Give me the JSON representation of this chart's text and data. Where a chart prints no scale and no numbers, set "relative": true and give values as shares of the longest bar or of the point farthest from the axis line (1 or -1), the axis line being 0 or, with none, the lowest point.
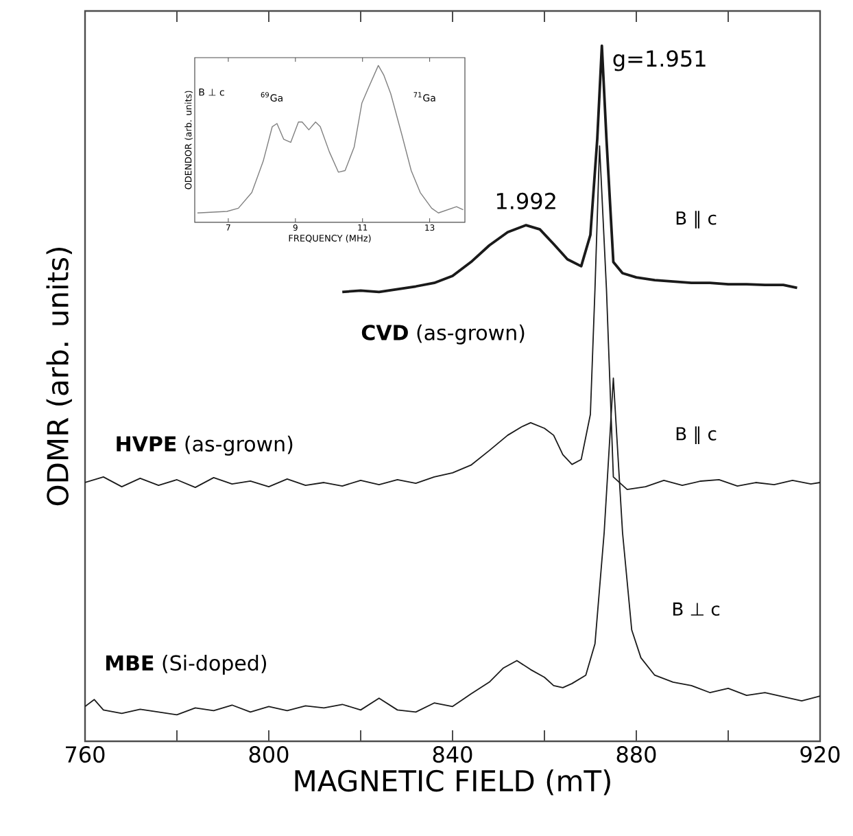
{
  "chart_data": [
    {
      "type": "line",
      "relative": true,
      "xlabel": "MAGNETIC FIELD (mT)",
      "ylabel": "ODMR (arb. units)",
      "xlim": [
        760,
        920
      ],
      "xticks": [
        760,
        {
          "value": 780,
          "label": null
        },
        800,
        {
          "value": 820,
          "label": null
        },
        840,
        {
          "value": 860,
          "label": null
        },
        880,
        {
          "value": 900,
          "label": null
        },
        920
      ],
      "marker": "none",
      "line_style": "solid",
      "grid": false,
      "legend": false,
      "series": [
        {
          "name": "**CVD** (as-grown)",
          "color": "#1a1a1a",
          "x": [
            816,
            820,
            824,
            828,
            832,
            836,
            840,
            844,
            848,
            852,
            856,
            859,
            862,
            865,
            868,
            870,
            871.5,
            872.5,
            873.5,
            875,
            877,
            880,
            884,
            888,
            892,
            896,
            900,
            904,
            908,
            912,
            915
          ],
          "values": [
            0.646,
            0.648,
            0.646,
            0.65,
            0.654,
            0.659,
            0.669,
            0.689,
            0.713,
            0.732,
            0.742,
            0.736,
            0.715,
            0.693,
            0.683,
            0.728,
            0.866,
            1.0,
            0.866,
            0.689,
            0.673,
            0.667,
            0.663,
            0.661,
            0.659,
            0.659,
            0.657,
            0.657,
            0.656,
            0.656,
            0.652
          ]
        },
        {
          "name": "**HVPE** (as-grown)",
          "color": "#1a1a1a",
          "x": [
            760,
            764,
            768,
            772,
            776,
            780,
            784,
            788,
            792,
            796,
            800,
            804,
            808,
            812,
            816,
            820,
            824,
            828,
            832,
            836,
            840,
            844,
            848,
            852,
            855,
            857,
            860,
            862,
            864,
            866,
            868,
            870,
            871,
            872,
            873.5,
            875,
            878,
            882,
            886,
            890,
            894,
            898,
            902,
            906,
            910,
            914,
            918,
            920
          ],
          "values": [
            0.372,
            0.38,
            0.366,
            0.378,
            0.368,
            0.376,
            0.365,
            0.379,
            0.37,
            0.374,
            0.366,
            0.377,
            0.368,
            0.372,
            0.367,
            0.375,
            0.369,
            0.376,
            0.371,
            0.38,
            0.386,
            0.397,
            0.418,
            0.44,
            0.452,
            0.458,
            0.45,
            0.44,
            0.412,
            0.398,
            0.405,
            0.47,
            0.65,
            0.856,
            0.65,
            0.38,
            0.362,
            0.366,
            0.375,
            0.368,
            0.374,
            0.376,
            0.367,
            0.372,
            0.369,
            0.375,
            0.37,
            0.372
          ]
        },
        {
          "name": "**MBE** (Si-doped)",
          "color": "#1a1a1a",
          "x": [
            760,
            762,
            764,
            768,
            772,
            776,
            780,
            784,
            788,
            792,
            796,
            800,
            804,
            808,
            812,
            816,
            820,
            824,
            828,
            832,
            836,
            840,
            844,
            848,
            851,
            854,
            857,
            860,
            862,
            864,
            866,
            869,
            871,
            873,
            875,
            877,
            879,
            881,
            884,
            888,
            892,
            896,
            900,
            904,
            908,
            912,
            916,
            920
          ],
          "values": [
            0.05,
            0.06,
            0.045,
            0.04,
            0.046,
            0.042,
            0.038,
            0.048,
            0.044,
            0.052,
            0.042,
            0.05,
            0.044,
            0.051,
            0.048,
            0.053,
            0.045,
            0.062,
            0.045,
            0.042,
            0.055,
            0.05,
            0.068,
            0.085,
            0.105,
            0.116,
            0.103,
            0.092,
            0.08,
            0.077,
            0.083,
            0.095,
            0.14,
            0.3,
            0.522,
            0.3,
            0.16,
            0.12,
            0.095,
            0.085,
            0.08,
            0.07,
            0.076,
            0.066,
            0.07,
            0.064,
            0.058,
            0.065
          ]
        }
      ],
      "annotations": [
        {
          "text": "g=1.951",
          "x": 872.5,
          "y": 1.0
        },
        {
          "text": "1.992",
          "x": 856,
          "y": 0.742
        },
        "B ∥ c",
        "B ∥ c",
        "B ⊥ c"
      ]
    },
    {
      "type": "line",
      "relative": true,
      "xlabel": "FREQUENCY (MHz)",
      "ylabel": "ODENDOR (arb. units)",
      "xlim": [
        6.0,
        14.05
      ],
      "xticks": [
        7,
        9,
        11,
        13
      ],
      "marker": "none",
      "line_style": "solid",
      "grid": false,
      "legend": false,
      "series": [
        {
          "color": "#808080",
          "x": [
            6.08,
            6.96,
            7.3,
            7.7,
            8.04,
            8.31,
            8.45,
            8.65,
            8.86,
            9.09,
            9.2,
            9.4,
            9.6,
            9.74,
            10.01,
            10.28,
            10.48,
            10.75,
            10.98,
            11.16,
            11.47,
            11.63,
            11.84,
            12.17,
            12.45,
            12.72,
            13.06,
            13.26,
            13.53,
            13.8,
            14.0
          ],
          "values": [
            0.06,
            0.07,
            0.09,
            0.19,
            0.39,
            0.61,
            0.63,
            0.53,
            0.51,
            0.64,
            0.64,
            0.59,
            0.64,
            0.61,
            0.45,
            0.32,
            0.33,
            0.48,
            0.76,
            0.85,
            1.0,
            0.94,
            0.82,
            0.56,
            0.33,
            0.19,
            0.09,
            0.06,
            0.08,
            0.1,
            0.08
          ]
        }
      ],
      "annotations": [
        "B ⊥ c",
        "$^{69}$Ga",
        "$^{71}$Ga"
      ]
    }
  ]
}
